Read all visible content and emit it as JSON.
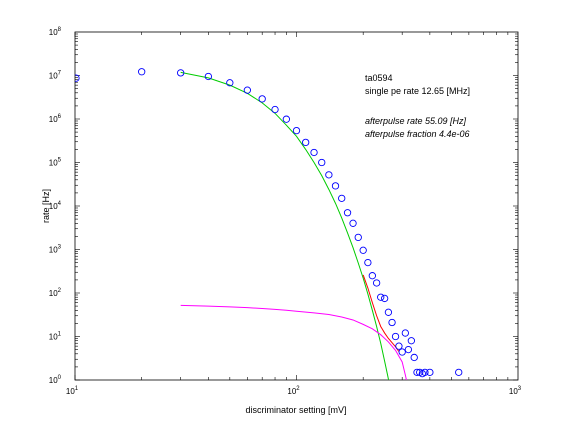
{
  "chart_data": {
    "type": "scatter",
    "xscale": "log",
    "yscale": "log",
    "xlim": [
      10,
      1000
    ],
    "ylim": [
      1,
      100000000
    ],
    "xlabel": "discriminator setting [mV]",
    "ylabel": "rate [Hz]",
    "x_ticks": [
      {
        "base": "10",
        "exp": "1",
        "value": 10
      },
      {
        "base": "10",
        "exp": "2",
        "value": 100
      },
      {
        "base": "10",
        "exp": "3",
        "value": 1000
      }
    ],
    "y_ticks": [
      {
        "base": "10",
        "exp": "0",
        "value": 1
      },
      {
        "base": "10",
        "exp": "1",
        "value": 10
      },
      {
        "base": "10",
        "exp": "2",
        "value": 100
      },
      {
        "base": "10",
        "exp": "3",
        "value": 1000
      },
      {
        "base": "10",
        "exp": "4",
        "value": 10000
      },
      {
        "base": "10",
        "exp": "5",
        "value": 100000
      },
      {
        "base": "10",
        "exp": "6",
        "value": 1000000
      },
      {
        "base": "10",
        "exp": "7",
        "value": 10000000
      },
      {
        "base": "10",
        "exp": "8",
        "value": 100000000
      }
    ],
    "grid": false,
    "annotations": [
      {
        "text": "ta0594",
        "style": "normal"
      },
      {
        "text": "single pe rate 12.65 [MHz]",
        "style": "normal"
      },
      {
        "text": "afterpulse rate 55.09 [Hz]",
        "style": "italic"
      },
      {
        "text": "afterpulse fraction 4.4e-06",
        "style": "italic"
      }
    ],
    "series": [
      {
        "kind": "markers",
        "marker": "circle-open",
        "color": "#0000ff",
        "points": [
          [
            10.1,
            8700000
          ],
          [
            20,
            12200000
          ],
          [
            30,
            11500000
          ],
          [
            40,
            9500000
          ],
          [
            50,
            6800000
          ],
          [
            60,
            4600000
          ],
          [
            70,
            2900000
          ],
          [
            80,
            1650000
          ],
          [
            90,
            990000
          ],
          [
            100,
            540000
          ],
          [
            110,
            290000
          ],
          [
            120,
            170000
          ],
          [
            130,
            100000
          ],
          [
            140,
            52000
          ],
          [
            150,
            29000
          ],
          [
            160,
            15000
          ],
          [
            170,
            7000
          ],
          [
            180,
            4000
          ],
          [
            190,
            1900
          ],
          [
            200,
            960
          ],
          [
            210,
            500
          ],
          [
            220,
            250
          ],
          [
            230,
            170
          ],
          [
            240,
            80
          ],
          [
            250,
            75
          ],
          [
            260,
            36
          ],
          [
            270,
            21
          ],
          [
            280,
            10
          ],
          [
            290,
            6
          ],
          [
            300,
            4.4
          ],
          [
            310,
            12
          ],
          [
            320,
            5
          ],
          [
            330,
            8
          ],
          [
            340,
            3.3
          ],
          [
            350,
            1.5
          ],
          [
            360,
            1.5
          ],
          [
            370,
            1.4
          ],
          [
            380,
            1.5
          ],
          [
            400,
            1.5
          ],
          [
            540,
            1.5
          ]
        ]
      },
      {
        "kind": "line",
        "color": "#00cc00",
        "points": [
          [
            30,
            11800000
          ],
          [
            40,
            8800000
          ],
          [
            50,
            6000000
          ],
          [
            60,
            3900000
          ],
          [
            70,
            2350000
          ],
          [
            80,
            1350000
          ],
          [
            90,
            720000
          ],
          [
            100,
            400000
          ],
          [
            110,
            200000
          ],
          [
            120,
            100000
          ],
          [
            130,
            50000
          ],
          [
            140,
            24000
          ],
          [
            150,
            11500
          ],
          [
            160,
            5300
          ],
          [
            170,
            2400
          ],
          [
            180,
            1100
          ],
          [
            190,
            490
          ],
          [
            200,
            220
          ],
          [
            210,
            95
          ],
          [
            220,
            40
          ],
          [
            230,
            17
          ],
          [
            240,
            7
          ],
          [
            250,
            2.7
          ],
          [
            260,
            1.05
          ],
          [
            262,
            0.9
          ]
        ]
      },
      {
        "kind": "line",
        "color": "#ff00ff",
        "points": [
          [
            30,
            52
          ],
          [
            40,
            50
          ],
          [
            50,
            48
          ],
          [
            60,
            46
          ],
          [
            70,
            44
          ],
          [
            80,
            42
          ],
          [
            90,
            40
          ],
          [
            100,
            38
          ],
          [
            120,
            35
          ],
          [
            140,
            32
          ],
          [
            160,
            28
          ],
          [
            180,
            24
          ],
          [
            200,
            19
          ],
          [
            220,
            15
          ],
          [
            240,
            11
          ],
          [
            260,
            7.5
          ],
          [
            280,
            4.8
          ],
          [
            300,
            2.6
          ],
          [
            310,
            1.3
          ],
          [
            315,
            0.9
          ]
        ]
      },
      {
        "kind": "line",
        "color": "#ff0000",
        "points": [
          [
            200,
            260
          ],
          [
            210,
            130
          ],
          [
            220,
            60
          ],
          [
            230,
            30
          ],
          [
            240,
            17
          ],
          [
            250,
            12
          ],
          [
            260,
            9
          ],
          [
            270,
            7.2
          ],
          [
            280,
            5.8
          ],
          [
            290,
            4.5
          ]
        ]
      }
    ]
  }
}
